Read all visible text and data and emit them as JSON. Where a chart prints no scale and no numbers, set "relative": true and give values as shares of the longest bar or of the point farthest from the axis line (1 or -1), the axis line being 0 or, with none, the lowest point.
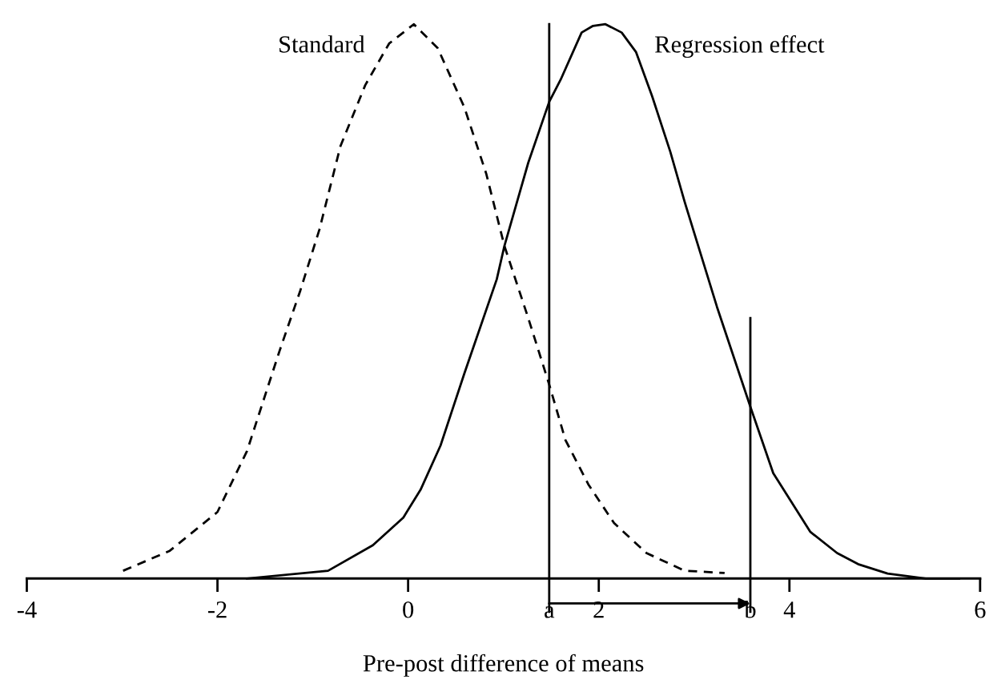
{
  "chart_data": {
    "type": "line",
    "relative": true,
    "xlabel": "Pre-post difference of means",
    "xlim": [
      -4,
      6
    ],
    "xticks": [
      -4,
      -2,
      0,
      {
        "value": 1.48,
        "label": "a"
      },
      2,
      {
        "value": 3.59,
        "label": "b"
      },
      4,
      6
    ],
    "legend": false,
    "grid": false,
    "marker": "none",
    "ref_lines": [
      {
        "axis": "x",
        "value": 1.48
      },
      {
        "axis": "x",
        "value": 3.59
      }
    ],
    "series": [
      {
        "name": "Standard",
        "color": "#000000",
        "line_style": "dashed",
        "x": [
          -2.99,
          -2.5,
          -2.0,
          -1.69,
          -1.35,
          -1.13,
          -0.93,
          -0.71,
          -0.45,
          -0.2,
          0.06,
          0.31,
          0.59,
          0.82,
          1.01,
          1.26,
          1.48,
          1.65,
          1.89,
          2.16,
          2.5,
          2.9,
          3.32
        ],
        "values": [
          0.014,
          0.05,
          0.12,
          0.23,
          0.41,
          0.52,
          0.63,
          0.78,
          0.89,
          0.965,
          1.0,
          0.957,
          0.85,
          0.73,
          0.6,
          0.47,
          0.35,
          0.25,
          0.17,
          0.1,
          0.046,
          0.014,
          0.01
        ]
      },
      {
        "name": "Regression effect",
        "color": "#000000",
        "line_style": "solid",
        "x": [
          -1.69,
          -0.84,
          -0.37,
          -0.05,
          0.13,
          0.34,
          0.59,
          0.93,
          1.01,
          1.26,
          1.48,
          1.6,
          1.82,
          1.94,
          2.07,
          2.24,
          2.39,
          2.56,
          2.75,
          2.9,
          3.24,
          3.59,
          3.83,
          4.22,
          4.5,
          4.72,
          5.03,
          5.43,
          5.78
        ],
        "values": [
          0,
          0.014,
          0.06,
          0.11,
          0.16,
          0.24,
          0.37,
          0.54,
          0.6,
          0.75,
          0.86,
          0.9,
          0.985,
          0.997,
          1.0,
          0.985,
          0.95,
          0.87,
          0.77,
          0.68,
          0.49,
          0.31,
          0.19,
          0.084,
          0.046,
          0.026,
          0.009,
          0,
          0
        ]
      }
    ]
  }
}
